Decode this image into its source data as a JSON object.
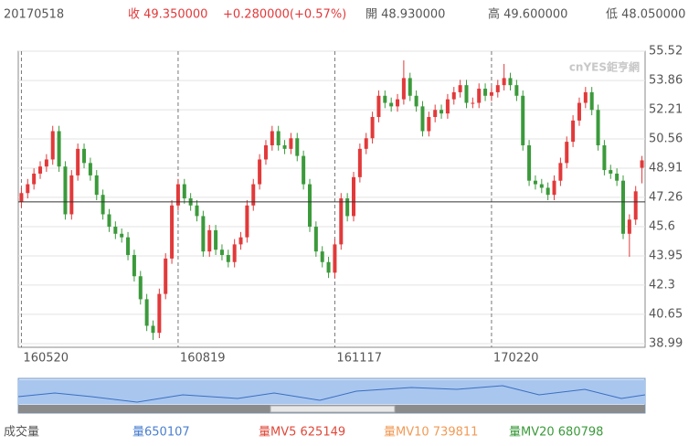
{
  "header": {
    "date": "20170518",
    "close": "收 49.350000",
    "change": "+0.280000(+0.57%)",
    "open": "開 48.930000",
    "high": "高 49.600000",
    "low": "低 48.050000"
  },
  "watermark": "cnYES鉅亨網",
  "volume": {
    "title": "成交量",
    "vol": "量650107",
    "mv5": "量MV5 625149",
    "mv10": "量MV10 739811",
    "mv20": "量MV20 680798"
  },
  "chart_data": {
    "type": "candlestick",
    "up_color": "#e2393a",
    "down_color": "#3b9a3b",
    "categories": [
      "160520",
      null,
      null,
      null,
      null,
      null,
      null,
      null,
      null,
      null,
      null,
      null,
      null,
      null,
      null,
      null,
      null,
      null,
      null,
      null,
      null,
      null,
      null,
      null,
      null,
      "160819",
      null,
      null,
      null,
      null,
      null,
      null,
      null,
      null,
      null,
      null,
      null,
      null,
      null,
      null,
      null,
      null,
      null,
      null,
      null,
      null,
      null,
      null,
      null,
      null,
      "161117",
      null,
      null,
      null,
      null,
      null,
      null,
      null,
      null,
      null,
      null,
      null,
      null,
      null,
      null,
      null,
      null,
      null,
      null,
      null,
      null,
      null,
      null,
      null,
      null,
      "170220",
      null,
      null,
      null,
      null,
      null,
      null,
      null,
      null,
      null,
      null,
      null,
      null,
      null,
      null,
      null,
      null,
      null,
      null,
      null,
      null,
      null,
      null,
      null,
      null
    ],
    "open": [
      47.0,
      47.5,
      48.0,
      48.6,
      49.0,
      49.4,
      51.0,
      49.0,
      46.3,
      48.5,
      50.0,
      49.2,
      48.5,
      47.4,
      46.3,
      45.6,
      45.2,
      45.0,
      44.0,
      42.8,
      41.5,
      40.0,
      39.6,
      41.8,
      43.8,
      46.8,
      48.0,
      47.2,
      46.8,
      46.2,
      44.2,
      45.4,
      44.3,
      44.0,
      43.6,
      44.6,
      45.0,
      46.8,
      48.0,
      49.4,
      50.2,
      51.0,
      50.2,
      50.0,
      50.6,
      49.6,
      48.0,
      45.6,
      44.2,
      43.6,
      43.0,
      44.6,
      47.2,
      46.2,
      48.4,
      50.0,
      50.6,
      51.8,
      53.0,
      52.6,
      52.4,
      52.8,
      54.0,
      53.0,
      52.4,
      51.0,
      51.8,
      52.2,
      52.0,
      52.8,
      53.2,
      53.6,
      52.6,
      52.6,
      53.4,
      53.0,
      53.2,
      53.6,
      54.0,
      53.6,
      53.0,
      50.2,
      48.2,
      48.0,
      47.8,
      47.4,
      48.2,
      49.2,
      50.4,
      51.6,
      52.6,
      53.2,
      52.2,
      50.2,
      48.8,
      48.6,
      48.2,
      45.2,
      46.0,
      48.93
    ],
    "high": [
      47.8,
      48.3,
      48.9,
      49.3,
      49.7,
      51.3,
      51.3,
      49.3,
      48.8,
      50.3,
      50.3,
      49.5,
      48.8,
      47.7,
      46.6,
      45.9,
      45.5,
      45.3,
      44.3,
      43.1,
      41.8,
      40.3,
      42.1,
      44.1,
      47.1,
      48.3,
      48.3,
      47.5,
      47.1,
      46.5,
      45.7,
      45.7,
      44.6,
      44.3,
      44.9,
      45.3,
      47.1,
      48.3,
      49.7,
      50.5,
      51.3,
      51.3,
      50.5,
      50.9,
      50.9,
      49.9,
      48.3,
      45.9,
      44.5,
      43.9,
      44.9,
      47.5,
      47.5,
      48.7,
      50.3,
      50.9,
      52.1,
      53.3,
      53.3,
      52.9,
      53.1,
      55.0,
      54.3,
      53.3,
      52.7,
      52.1,
      52.5,
      52.5,
      53.1,
      53.5,
      53.9,
      53.9,
      52.9,
      53.7,
      53.7,
      53.5,
      53.9,
      54.8,
      54.3,
      53.9,
      53.3,
      50.5,
      48.5,
      48.3,
      48.1,
      48.5,
      49.5,
      50.7,
      51.9,
      52.9,
      53.5,
      53.5,
      52.5,
      50.5,
      49.1,
      48.9,
      48.5,
      46.3,
      47.9,
      49.6
    ],
    "low": [
      46.7,
      47.2,
      47.7,
      48.3,
      48.7,
      49.1,
      48.7,
      46.0,
      46.0,
      48.2,
      48.9,
      48.2,
      47.1,
      46.0,
      45.3,
      44.9,
      44.7,
      43.7,
      42.5,
      41.2,
      39.7,
      39.2,
      39.3,
      41.5,
      43.5,
      46.5,
      46.9,
      46.5,
      45.9,
      43.9,
      43.9,
      44.0,
      43.7,
      43.3,
      43.3,
      44.3,
      44.7,
      46.5,
      47.7,
      49.1,
      49.9,
      49.9,
      49.7,
      49.7,
      49.3,
      47.7,
      45.3,
      43.9,
      43.3,
      42.7,
      42.7,
      44.3,
      45.9,
      45.9,
      48.1,
      49.7,
      50.3,
      51.5,
      52.3,
      52.1,
      52.1,
      52.5,
      52.7,
      52.1,
      50.7,
      50.7,
      51.5,
      51.7,
      51.7,
      52.5,
      52.9,
      52.3,
      52.3,
      52.3,
      52.7,
      52.7,
      52.9,
      53.3,
      53.3,
      52.7,
      49.9,
      47.9,
      47.7,
      47.5,
      47.1,
      47.1,
      47.9,
      48.9,
      50.1,
      51.3,
      52.3,
      51.9,
      49.9,
      48.5,
      48.3,
      47.9,
      44.9,
      43.9,
      45.7,
      48.05
    ],
    "close": [
      47.5,
      48.0,
      48.6,
      49.0,
      49.4,
      51.0,
      49.0,
      46.3,
      48.5,
      50.0,
      49.2,
      48.5,
      47.4,
      46.3,
      45.6,
      45.2,
      45.0,
      44.0,
      42.8,
      41.5,
      40.0,
      39.6,
      41.8,
      43.8,
      46.8,
      48.0,
      47.2,
      46.8,
      46.2,
      44.2,
      45.4,
      44.3,
      44.0,
      43.6,
      44.6,
      45.0,
      46.8,
      48.0,
      49.4,
      50.2,
      51.0,
      50.2,
      50.0,
      50.6,
      49.6,
      48.0,
      45.6,
      44.2,
      43.6,
      43.0,
      44.6,
      47.2,
      46.2,
      48.4,
      50.0,
      50.6,
      51.8,
      53.0,
      52.6,
      52.4,
      52.8,
      54.0,
      53.0,
      52.4,
      51.0,
      51.8,
      52.2,
      52.0,
      52.8,
      53.2,
      53.6,
      52.6,
      52.6,
      53.4,
      53.0,
      53.2,
      53.6,
      54.0,
      53.6,
      53.0,
      50.2,
      48.2,
      48.0,
      47.8,
      47.4,
      48.2,
      49.2,
      50.4,
      51.6,
      52.6,
      53.2,
      52.2,
      50.2,
      48.8,
      48.6,
      48.2,
      45.2,
      46.0,
      47.6,
      49.35
    ],
    "ref_line": 47.0,
    "ylim": [
      38.99,
      55.52
    ],
    "yticks": [
      38.99,
      40.65,
      42.3,
      43.95,
      45.6,
      47.26,
      48.91,
      50.56,
      52.21,
      53.86,
      55.52
    ],
    "grid": true
  }
}
